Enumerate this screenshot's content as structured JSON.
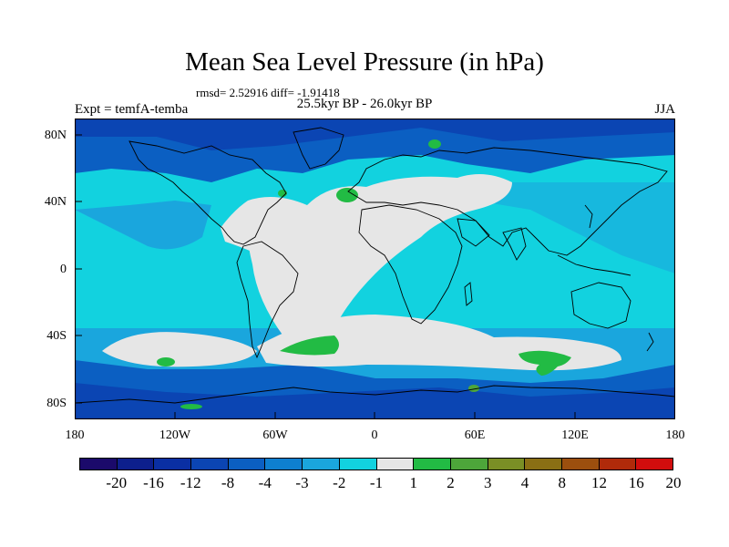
{
  "title": "Mean Sea Level Pressure (in hPa)",
  "stats": "rmsd= 2.52916  diff= -1.91418",
  "subtitle": "25.5kyr BP - 26.0kyr BP",
  "left_label": "Expt = temfA-temba",
  "right_label": "JJA",
  "lat_labels": [
    "80N",
    "40N",
    "0",
    "40S",
    "80S"
  ],
  "lon_labels": [
    "180",
    "120W",
    "60W",
    "0",
    "60E",
    "120E",
    "180"
  ],
  "colorbar": {
    "labels": [
      "-20",
      "-16",
      "-12",
      "-8",
      "-4",
      "-3",
      "-2",
      "-1",
      "1",
      "2",
      "3",
      "4",
      "8",
      "12",
      "16",
      "20"
    ],
    "colors": [
      "#1b0a6b",
      "#0d1f8c",
      "#0a2fa3",
      "#0b45b3",
      "#0b5fc2",
      "#0e7fd0",
      "#1aa6dd",
      "#12d2df",
      "#e6e6e6",
      "#22bb44",
      "#4da63a",
      "#7a8f25",
      "#8a6f14",
      "#9c4f0e",
      "#b02a0a",
      "#d10d0d"
    ]
  },
  "map_colors": {
    "ocean_base": "#12d2df",
    "shelf": "#1aa6dd",
    "deep": "#0e7fd0",
    "high_lat": "#0b5fc2",
    "polar": "#0b45b3",
    "neutral": "#e6e6e6",
    "positive": "#22bb44",
    "positive2": "#4da63a"
  }
}
